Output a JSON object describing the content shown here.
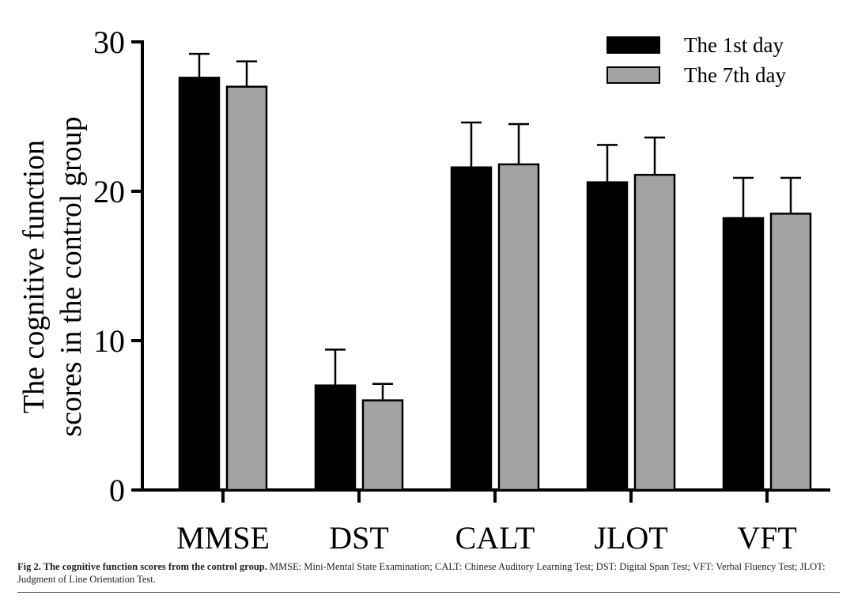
{
  "chart_data": {
    "type": "bar",
    "y_label": [
      "The cognitive function",
      "scores in the control group"
    ],
    "categories": [
      "MMSE",
      "DST",
      "CALT",
      "JLOT",
      "VFT"
    ],
    "series": [
      {
        "name": "The 1st day",
        "color": "#000000",
        "values": [
          27.6,
          7.0,
          21.6,
          20.6,
          18.2
        ],
        "errors": [
          1.6,
          2.4,
          3.0,
          2.5,
          2.7
        ]
      },
      {
        "name": "The 7th day",
        "color": "#a3a3a3",
        "values": [
          27.0,
          6.0,
          21.8,
          21.1,
          18.5
        ],
        "errors": [
          1.7,
          1.1,
          2.7,
          2.5,
          2.4
        ]
      }
    ],
    "ylim": [
      0,
      30
    ],
    "yticks": [
      0,
      10,
      20,
      30
    ],
    "legend": "top-right"
  },
  "caption": {
    "title": "Fig 2. The cognitive function scores from the control group.",
    "text": "MMSE: Mini-Mental State Examination; CALT: Chinese Auditory Learning Test; DST: Digital Span Test; VFT: Verbal Fluency Test; JLOT: Judgment of Line Orientation Test."
  }
}
